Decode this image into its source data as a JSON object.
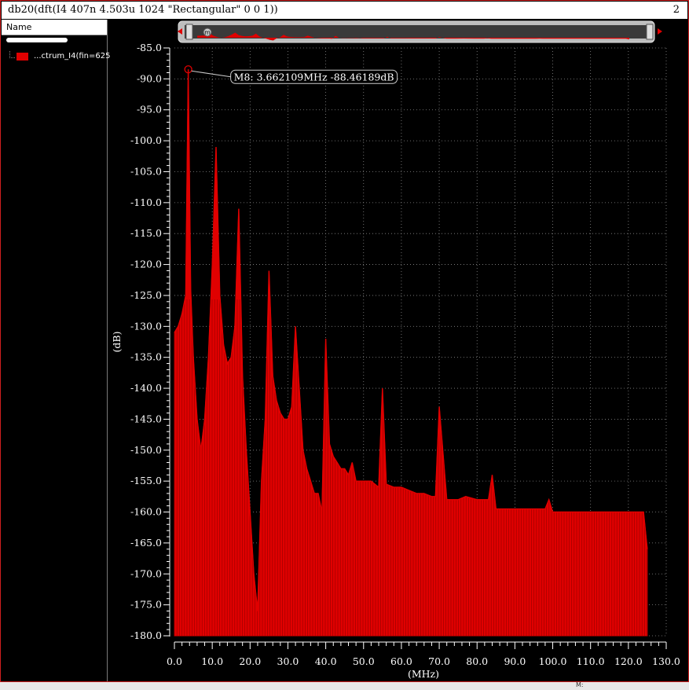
{
  "window": {
    "title": "db20(dft(I4  407n 4.503u 1024 \"Rectangular\" 0 0 1))",
    "subwindow_number": "2"
  },
  "legend": {
    "header": "Name",
    "items": [
      {
        "label": "...ctrum_I4(fin=625",
        "color": "#e00000"
      }
    ]
  },
  "marker": {
    "id": "M8",
    "label": "M8: 3.662109MHz -88.46189dB",
    "x": 3.662109,
    "y": -88.46189
  },
  "overview": {
    "marker_letter": "m"
  },
  "bottom_text": "M:",
  "colors": {
    "trace": "#e00000",
    "background": "#000000",
    "grid": "#8a8a8a",
    "text": "#ffffff"
  },
  "chart_data": {
    "type": "line",
    "xlabel": "(MHz)",
    "ylabel": "(dB)",
    "xlim": [
      0,
      130
    ],
    "ylim": [
      -180,
      -85
    ],
    "x_ticks": [
      "0.0",
      "10.0",
      "20.0",
      "30.0",
      "40.0",
      "50.0",
      "60.0",
      "70.0",
      "80.0",
      "90.0",
      "100.0",
      "110.0",
      "120.0",
      "130.0"
    ],
    "y_ticks": [
      "-85.0",
      "-90.0",
      "-95.0",
      "-100.0",
      "-105.0",
      "-110.0",
      "-115.0",
      "-120.0",
      "-125.0",
      "-130.0",
      "-135.0",
      "-140.0",
      "-145.0",
      "-150.0",
      "-155.0",
      "-160.0",
      "-165.0",
      "-170.0",
      "-175.0",
      "-180.0"
    ],
    "grid": true,
    "series": [
      {
        "name": "...ctrum_I4(fin=625",
        "x": [
          0.0,
          1.0,
          2.0,
          3.0,
          3.66,
          4.3,
          5.0,
          6.0,
          7.0,
          8.0,
          9.0,
          10.0,
          11.0,
          12.0,
          13.0,
          14.0,
          15.0,
          16.0,
          17.0,
          18.0,
          19.0,
          20.0,
          21.0,
          22.0,
          23.0,
          24.0,
          25.0,
          26.0,
          27.0,
          28.0,
          29.0,
          30.0,
          31.0,
          32.0,
          33.0,
          34.0,
          35.0,
          36.0,
          37.0,
          38.0,
          39.0,
          40.0,
          41.0,
          42.0,
          43.0,
          44.0,
          45.0,
          46.0,
          47.0,
          48.0,
          50.0,
          52.0,
          54.0,
          55.0,
          56.0,
          58.0,
          60.0,
          62.0,
          64.0,
          66.0,
          68.0,
          69.0,
          70.0,
          72.0,
          75.0,
          77.0,
          80.0,
          83.0,
          84.0,
          85.0,
          88.0,
          90.0,
          92.0,
          94.0,
          96.0,
          98.0,
          99.0,
          100.0,
          103.0,
          106.0,
          108.0,
          110.0,
          113.0,
          116.0,
          119.0,
          122.0,
          124.0,
          125.0
        ],
        "y": [
          -131.0,
          -130.0,
          -128.0,
          -125.0,
          -88.46,
          -124.0,
          -135.0,
          -145.0,
          -150.0,
          -145.0,
          -135.0,
          -120.0,
          -101.0,
          -125.0,
          -133.0,
          -136.0,
          -135.0,
          -130.0,
          -111.0,
          -138.0,
          -150.0,
          -160.0,
          -170.0,
          -176.0,
          -155.0,
          -145.0,
          -121.0,
          -138.0,
          -142.0,
          -144.0,
          -145.0,
          -145.0,
          -143.0,
          -130.0,
          -140.0,
          -150.0,
          -153.0,
          -155.0,
          -157.0,
          -157.0,
          -160.0,
          -132.0,
          -149.0,
          -151.0,
          -152.0,
          -153.0,
          -153.0,
          -154.0,
          -152.0,
          -155.0,
          -155.0,
          -155.0,
          -156.0,
          -140.0,
          -155.5,
          -156.0,
          -156.0,
          -156.5,
          -157.0,
          -157.0,
          -157.5,
          -157.5,
          -143.0,
          -158.0,
          -158.0,
          -157.5,
          -158.0,
          -158.0,
          -154.0,
          -159.5,
          -159.5,
          -159.5,
          -159.5,
          -159.5,
          -159.5,
          -159.5,
          -158.0,
          -160.0,
          -160.0,
          -160.0,
          -160.0,
          -160.0,
          -160.0,
          -160.0,
          -160.0,
          -160.0,
          -160.0,
          -166.0
        ]
      }
    ]
  }
}
